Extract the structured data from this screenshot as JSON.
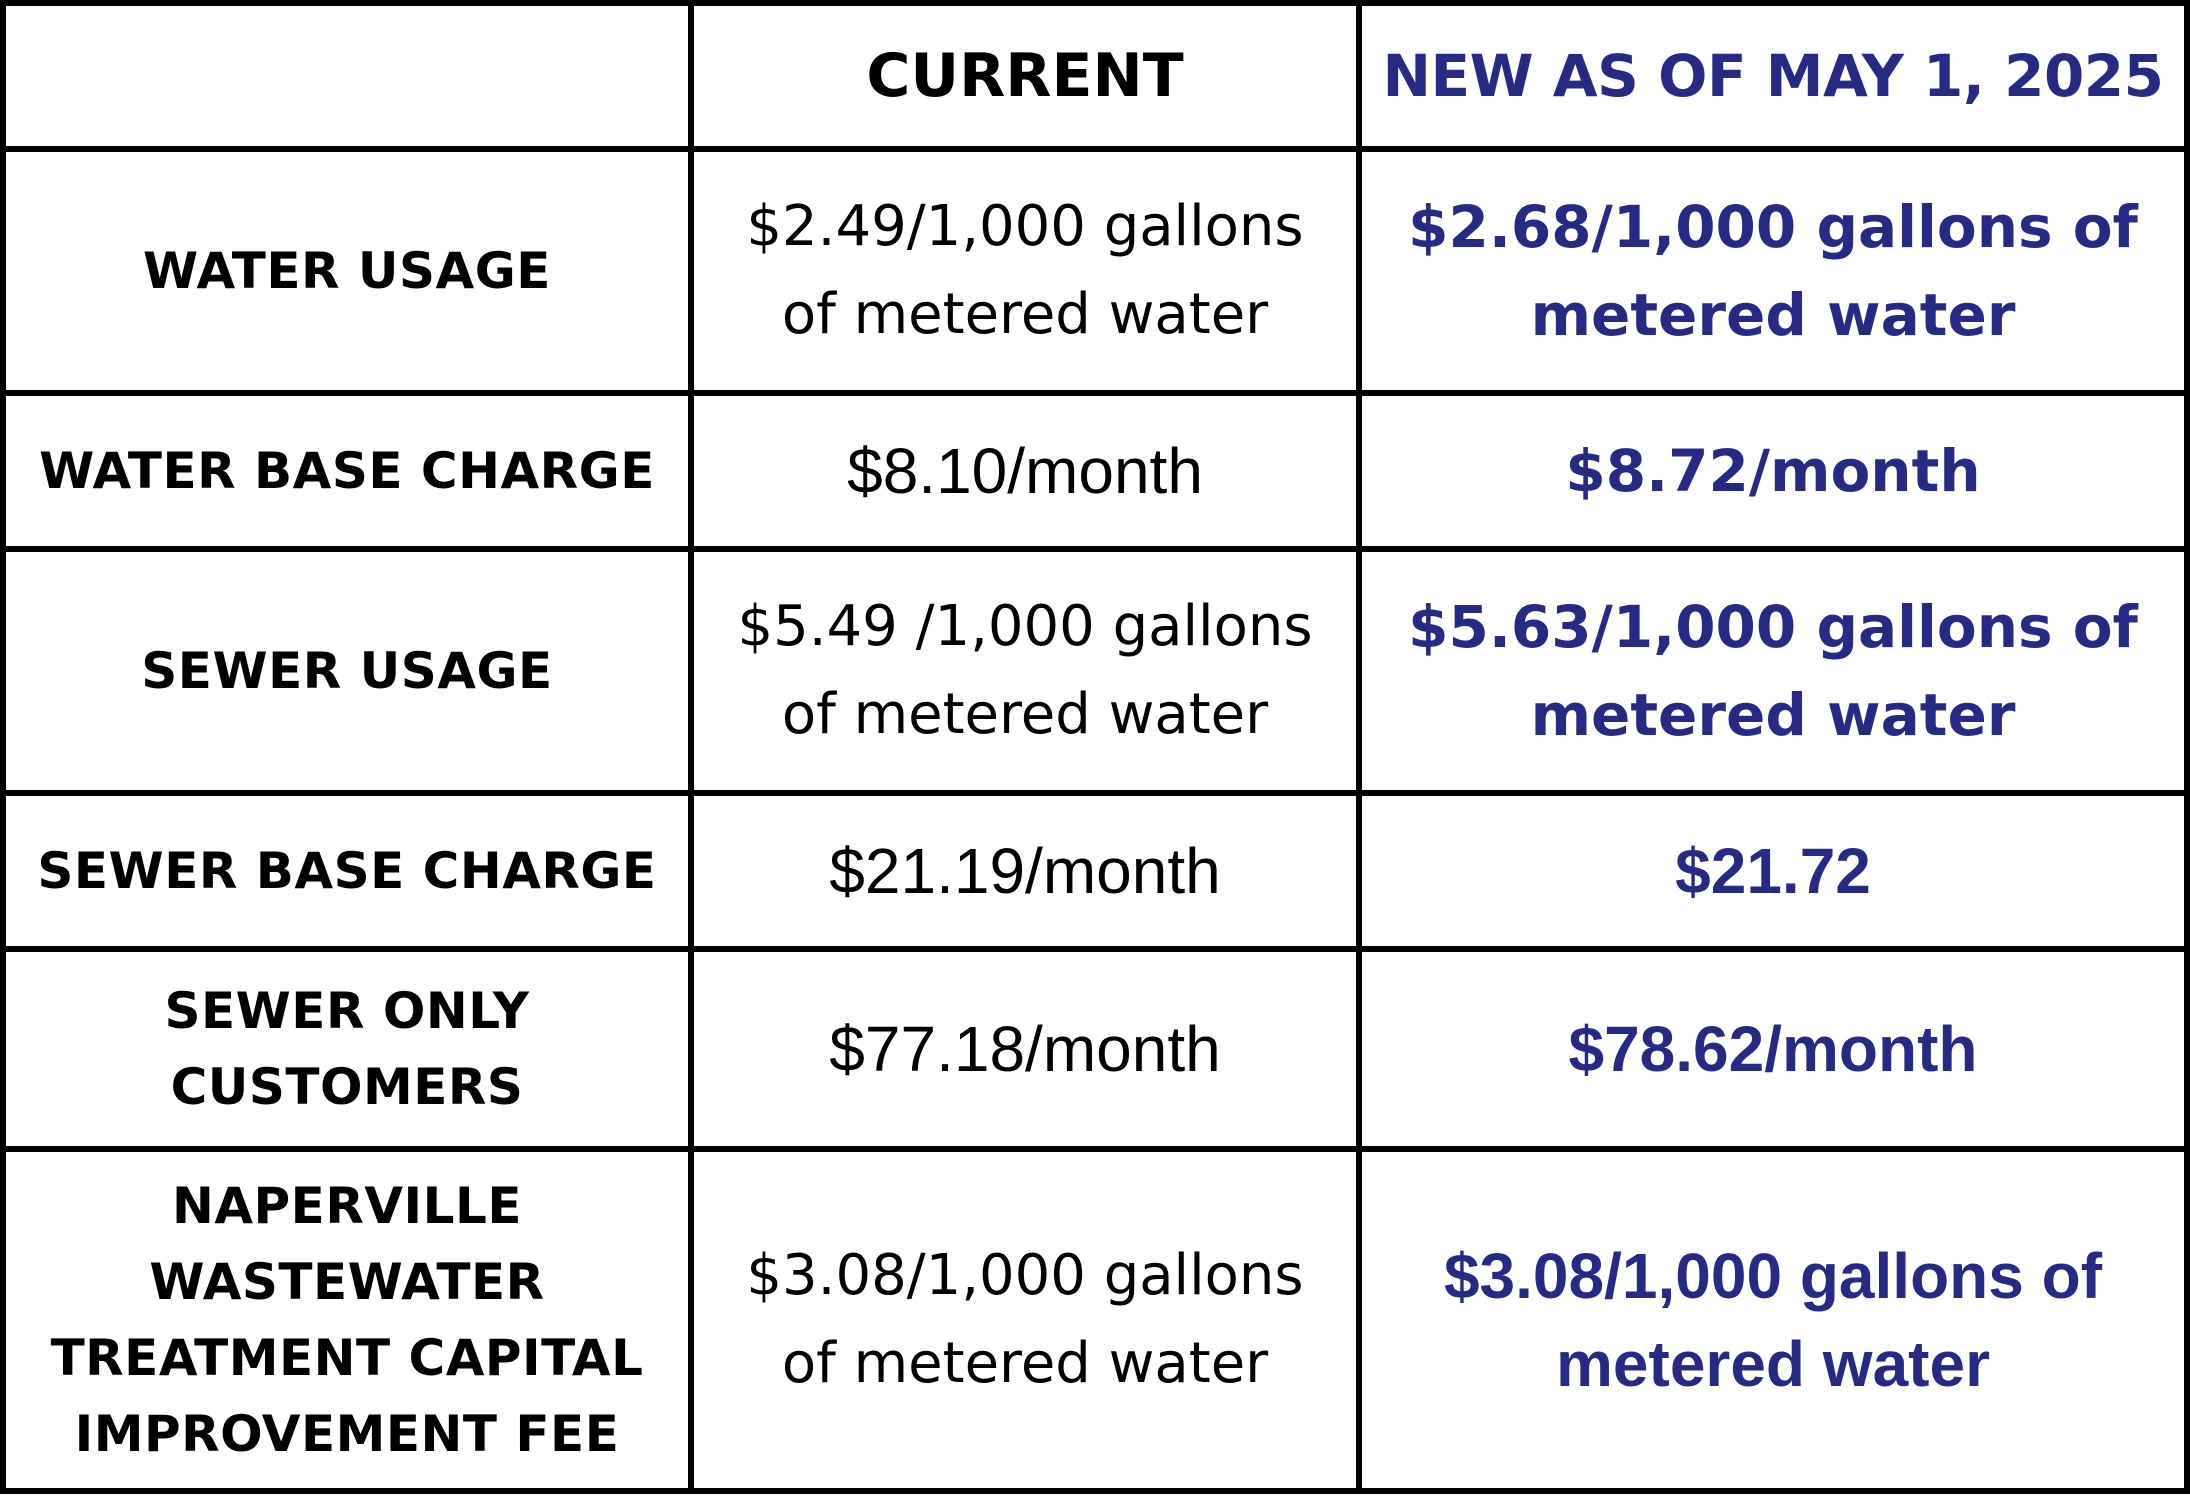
{
  "header": {
    "blank": "",
    "current": "CURRENT",
    "new": "NEW AS OF MAY 1, 2025"
  },
  "colors": {
    "border": "#000000",
    "new_value_accent": "#272a84",
    "text": "#000000",
    "background": "#ffffff"
  },
  "rows": [
    {
      "label_lines": [
        "WATER USAGE"
      ],
      "current_lines": [
        "$2.49/1,000 gallons",
        "of metered water"
      ],
      "new_lines": [
        "$2.68/1,000 gallons of",
        "metered water"
      ]
    },
    {
      "label_lines": [
        "WATER BASE CHARGE"
      ],
      "current_lines": [
        "$8.10/month"
      ],
      "new_lines": [
        "$8.72/month"
      ]
    },
    {
      "label_lines": [
        "SEWER USAGE"
      ],
      "current_lines": [
        "$5.49 /1,000 gallons",
        "of metered water"
      ],
      "new_lines": [
        "$5.63/1,000 gallons of",
        "metered water"
      ]
    },
    {
      "label_lines": [
        "SEWER BASE CHARGE"
      ],
      "current_lines": [
        "$21.19/month"
      ],
      "new_lines": [
        "$21.72"
      ]
    },
    {
      "label_lines": [
        "SEWER ONLY",
        "CUSTOMERS"
      ],
      "current_lines": [
        "$77.18/month"
      ],
      "new_lines": [
        "$78.62/month"
      ]
    },
    {
      "label_lines": [
        "NAPERVILLE",
        "WASTEWATER",
        "TREATMENT CAPITAL",
        "IMPROVEMENT FEE"
      ],
      "current_lines": [
        "$3.08/1,000 gallons",
        "of metered water"
      ],
      "new_lines": [
        "$3.08/1,000 gallons of",
        "metered water"
      ]
    }
  ]
}
